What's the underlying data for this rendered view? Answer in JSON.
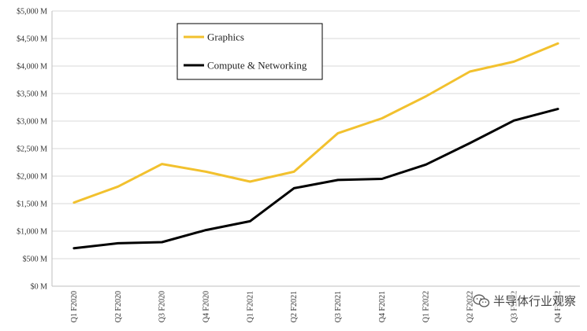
{
  "chart_data": {
    "type": "line",
    "title": "",
    "xlabel": "",
    "ylabel": "",
    "categories": [
      "Q1 F2020",
      "Q2 F2020",
      "Q3 F2020",
      "Q4 F2020",
      "Q1 F2021",
      "Q2 F2021",
      "Q3 F2021",
      "Q4 F2021",
      "Q1 F2022",
      "Q2 F2022",
      "Q3 F2022",
      "Q4 F2022"
    ],
    "yticks": [
      "$0 M",
      "$500 M",
      "$1,000 M",
      "$1,500 M",
      "$2,000 M",
      "$2,500 M",
      "$3,000 M",
      "$3,500 M",
      "$4,000 M",
      "$4,500 M",
      "$5,000 M"
    ],
    "ylim": [
      0,
      5000
    ],
    "grid": true,
    "legend_position": "top-left",
    "series": [
      {
        "name": "Graphics",
        "color": "#F2C12E",
        "values": [
          1520,
          1810,
          2220,
          2080,
          1900,
          2080,
          2780,
          3050,
          3450,
          3900,
          4080,
          4410
        ]
      },
      {
        "name": "Compute & Networking",
        "color": "#000000",
        "values": [
          690,
          780,
          800,
          1020,
          1180,
          1780,
          1930,
          1950,
          2210,
          2600,
          3010,
          3220
        ]
      }
    ]
  },
  "watermark": {
    "text": "半导体行业观察",
    "icon": "wechat-icon"
  }
}
